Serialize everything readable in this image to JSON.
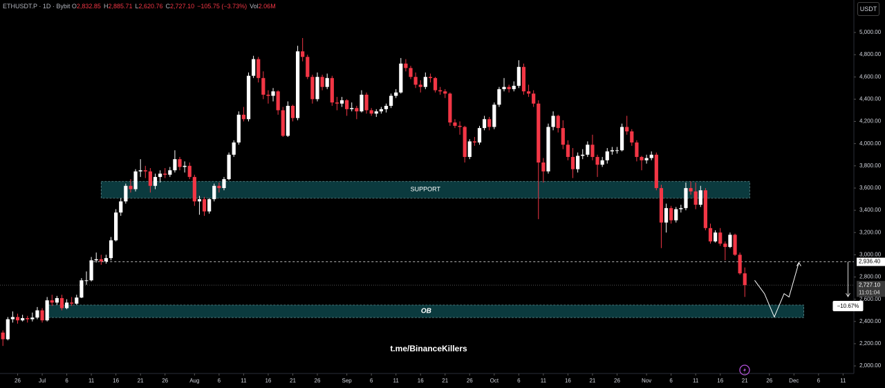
{
  "chart_data": {
    "type": "candlestick",
    "symbol": "ETHUSDT.P · 1D · Bybit",
    "header_fields": [
      {
        "key": "O",
        "text": "2,832.85"
      },
      {
        "key": "H",
        "text": "2,885.71"
      },
      {
        "key": "L",
        "text": "2,620.76"
      },
      {
        "key": "C",
        "text": "2,727.10"
      },
      {
        "text": "−105.75 (−3.73%)"
      },
      {
        "key": "Vol",
        "text": "2.06M"
      }
    ],
    "currency": "USDT",
    "watermark": "t.me/BinanceKillers",
    "up_color": "#ffffff",
    "down_color": "#f23645",
    "xlim": [
      -0.59,
      173.2
    ],
    "ylim": [
      1932,
      5292
    ],
    "yticks": [
      {
        "value": 2000,
        "label": "2,000.00"
      },
      {
        "value": 2200,
        "label": "2,200.00"
      },
      {
        "value": 2400,
        "label": "2,400.00"
      },
      {
        "value": 2600,
        "label": "2,600.00"
      },
      {
        "value": 2800,
        "label": "2,800.00"
      },
      {
        "value": 3000,
        "label": "3,000.00"
      },
      {
        "value": 3200,
        "label": "3,200.00"
      },
      {
        "value": 3400,
        "label": "3,400.00"
      },
      {
        "value": 3600,
        "label": "3,600.00"
      },
      {
        "value": 3800,
        "label": "3,800.00"
      },
      {
        "value": 4000,
        "label": "4,000.00"
      },
      {
        "value": 4200,
        "label": "4,200.00"
      },
      {
        "value": 4400,
        "label": "4,400.00"
      },
      {
        "value": 4600,
        "label": "4,600.00"
      },
      {
        "value": 4800,
        "label": "4,800.00"
      },
      {
        "value": 5000,
        "label": "5,000.00"
      }
    ],
    "xticks": [
      {
        "value": 3,
        "label": "26"
      },
      {
        "value": 8,
        "label": "Jul"
      },
      {
        "value": 13,
        "label": "6"
      },
      {
        "value": 18,
        "label": "11"
      },
      {
        "value": 23,
        "label": "16"
      },
      {
        "value": 28,
        "label": "21"
      },
      {
        "value": 33,
        "label": "26"
      },
      {
        "value": 39,
        "label": "Aug"
      },
      {
        "value": 44,
        "label": "6"
      },
      {
        "value": 49,
        "label": "11"
      },
      {
        "value": 54,
        "label": "16"
      },
      {
        "value": 59,
        "label": "21"
      },
      {
        "value": 64,
        "label": "26"
      },
      {
        "value": 70,
        "label": "Sep"
      },
      {
        "value": 75,
        "label": "6"
      },
      {
        "value": 80,
        "label": "11"
      },
      {
        "value": 85,
        "label": "16"
      },
      {
        "value": 90,
        "label": "21"
      },
      {
        "value": 95,
        "label": "26"
      },
      {
        "value": 100,
        "label": "Oct"
      },
      {
        "value": 105,
        "label": "6"
      },
      {
        "value": 110,
        "label": "11"
      },
      {
        "value": 115,
        "label": "16"
      },
      {
        "value": 120,
        "label": "21"
      },
      {
        "value": 125,
        "label": "26"
      },
      {
        "value": 131,
        "label": "Nov"
      },
      {
        "value": 136,
        "label": "6"
      },
      {
        "value": 141,
        "label": "11"
      },
      {
        "value": 146,
        "label": "16"
      },
      {
        "value": 151,
        "label": "21"
      },
      {
        "value": 156,
        "label": "26"
      },
      {
        "value": 161,
        "label": "Dec"
      },
      {
        "value": 166,
        "label": "6"
      },
      {
        "value": 171,
        "label": "11"
      }
    ],
    "candles": [
      [
        2300,
        2320,
        2180,
        2240
      ],
      [
        2240,
        2440,
        2230,
        2420
      ],
      [
        2420,
        2490,
        2390,
        2440
      ],
      [
        2440,
        2470,
        2380,
        2410
      ],
      [
        2410,
        2460,
        2400,
        2430
      ],
      [
        2430,
        2450,
        2390,
        2420
      ],
      [
        2420,
        2480,
        2400,
        2435
      ],
      [
        2435,
        2530,
        2420,
        2500
      ],
      [
        2500,
        2520,
        2390,
        2410
      ],
      [
        2410,
        2620,
        2400,
        2590
      ],
      [
        2590,
        2640,
        2540,
        2570
      ],
      [
        2570,
        2630,
        2550,
        2610
      ],
      [
        2610,
        2640,
        2500,
        2520
      ],
      [
        2520,
        2600,
        2510,
        2570
      ],
      [
        2570,
        2620,
        2540,
        2560
      ],
      [
        2560,
        2640,
        2550,
        2615
      ],
      [
        2615,
        2790,
        2610,
        2770
      ],
      [
        2770,
        2850,
        2730,
        2770
      ],
      [
        2770,
        2980,
        2760,
        2950
      ],
      [
        2950,
        3020,
        2930,
        2960
      ],
      [
        2960,
        3000,
        2910,
        2940
      ],
      [
        2940,
        3000,
        2920,
        2970
      ],
      [
        2970,
        3160,
        2950,
        3130
      ],
      [
        3130,
        3410,
        3120,
        3380
      ],
      [
        3380,
        3510,
        3350,
        3480
      ],
      [
        3480,
        3640,
        3460,
        3620
      ],
      [
        3620,
        3680,
        3560,
        3590
      ],
      [
        3590,
        3770,
        3570,
        3750
      ],
      [
        3750,
        3860,
        3700,
        3760
      ],
      [
        3760,
        3800,
        3690,
        3750
      ],
      [
        3750,
        3780,
        3560,
        3620
      ],
      [
        3620,
        3730,
        3590,
        3700
      ],
      [
        3700,
        3760,
        3650,
        3730
      ],
      [
        3730,
        3780,
        3690,
        3720
      ],
      [
        3720,
        3790,
        3700,
        3760
      ],
      [
        3760,
        3940,
        3740,
        3860
      ],
      [
        3860,
        3880,
        3760,
        3790
      ],
      [
        3790,
        3840,
        3740,
        3800
      ],
      [
        3800,
        3830,
        3680,
        3700
      ],
      [
        3700,
        3720,
        3440,
        3480
      ],
      [
        3480,
        3530,
        3360,
        3500
      ],
      [
        3500,
        3520,
        3350,
        3390
      ],
      [
        3390,
        3510,
        3370,
        3500
      ],
      [
        3500,
        3640,
        3480,
        3620
      ],
      [
        3620,
        3650,
        3560,
        3600
      ],
      [
        3600,
        3700,
        3580,
        3680
      ],
      [
        3680,
        3920,
        3670,
        3900
      ],
      [
        3900,
        4030,
        3880,
        4010
      ],
      [
        4010,
        4290,
        3990,
        4260
      ],
      [
        4260,
        4330,
        4200,
        4220
      ],
      [
        4220,
        4640,
        4200,
        4610
      ],
      [
        4610,
        4790,
        4590,
        4760
      ],
      [
        4760,
        4780,
        4550,
        4590
      ],
      [
        4590,
        4650,
        4400,
        4440
      ],
      [
        4440,
        4480,
        4360,
        4430
      ],
      [
        4430,
        4500,
        4380,
        4470
      ],
      [
        4470,
        4480,
        4260,
        4300
      ],
      [
        4300,
        4330,
        4060,
        4070
      ],
      [
        4070,
        4380,
        4060,
        4340
      ],
      [
        4340,
        4350,
        4200,
        4230
      ],
      [
        4230,
        4880,
        4210,
        4830
      ],
      [
        4830,
        4950,
        4740,
        4780
      ],
      [
        4780,
        4800,
        4580,
        4600
      ],
      [
        4600,
        4620,
        4360,
        4400
      ],
      [
        4400,
        4640,
        4380,
        4600
      ],
      [
        4600,
        4620,
        4480,
        4510
      ],
      [
        4510,
        4630,
        4490,
        4590
      ],
      [
        4590,
        4610,
        4340,
        4370
      ],
      [
        4370,
        4420,
        4300,
        4360
      ],
      [
        4360,
        4420,
        4330,
        4390
      ],
      [
        4390,
        4400,
        4250,
        4310
      ],
      [
        4310,
        4370,
        4290,
        4320
      ],
      [
        4320,
        4340,
        4220,
        4290
      ],
      [
        4290,
        4480,
        4280,
        4440
      ],
      [
        4440,
        4460,
        4270,
        4300
      ],
      [
        4300,
        4320,
        4250,
        4270
      ],
      [
        4270,
        4310,
        4240,
        4290
      ],
      [
        4290,
        4330,
        4270,
        4310
      ],
      [
        4310,
        4360,
        4280,
        4340
      ],
      [
        4340,
        4450,
        4320,
        4430
      ],
      [
        4430,
        4490,
        4410,
        4460
      ],
      [
        4460,
        4770,
        4450,
        4720
      ],
      [
        4720,
        4760,
        4650,
        4680
      ],
      [
        4680,
        4700,
        4580,
        4600
      ],
      [
        4600,
        4640,
        4500,
        4530
      ],
      [
        4530,
        4570,
        4460,
        4510
      ],
      [
        4510,
        4640,
        4490,
        4600
      ],
      [
        4600,
        4630,
        4550,
        4590
      ],
      [
        4590,
        4600,
        4460,
        4480
      ],
      [
        4480,
        4510,
        4440,
        4470
      ],
      [
        4470,
        4490,
        4410,
        4450
      ],
      [
        4450,
        4460,
        4160,
        4190
      ],
      [
        4190,
        4220,
        4140,
        4160
      ],
      [
        4160,
        4200,
        4080,
        4150
      ],
      [
        4150,
        4160,
        3830,
        3880
      ],
      [
        3880,
        4040,
        3860,
        4020
      ],
      [
        4020,
        4060,
        3980,
        4010
      ],
      [
        4010,
        4160,
        3990,
        4140
      ],
      [
        4140,
        4250,
        4120,
        4220
      ],
      [
        4220,
        4240,
        4120,
        4150
      ],
      [
        4150,
        4370,
        4130,
        4350
      ],
      [
        4350,
        4510,
        4330,
        4490
      ],
      [
        4490,
        4590,
        4470,
        4510
      ],
      [
        4510,
        4530,
        4460,
        4490
      ],
      [
        4490,
        4560,
        4470,
        4520
      ],
      [
        4520,
        4750,
        4500,
        4690
      ],
      [
        4690,
        4720,
        4440,
        4470
      ],
      [
        4470,
        4530,
        4420,
        4450
      ],
      [
        4450,
        4480,
        4330,
        4360
      ],
      [
        4360,
        4390,
        3320,
        3830
      ],
      [
        3830,
        3870,
        3650,
        3750
      ],
      [
        3750,
        4180,
        3730,
        4150
      ],
      [
        4150,
        4290,
        4120,
        4250
      ],
      [
        4250,
        4260,
        4100,
        4140
      ],
      [
        4140,
        4210,
        3950,
        3990
      ],
      [
        3990,
        4030,
        3850,
        3880
      ],
      [
        3880,
        3960,
        3690,
        3770
      ],
      [
        3770,
        3920,
        3740,
        3890
      ],
      [
        3890,
        3950,
        3860,
        3900
      ],
      [
        3900,
        4020,
        3880,
        3990
      ],
      [
        3990,
        4080,
        3850,
        3880
      ],
      [
        3880,
        3900,
        3700,
        3810
      ],
      [
        3810,
        3880,
        3790,
        3850
      ],
      [
        3850,
        3960,
        3820,
        3930
      ],
      [
        3930,
        3970,
        3900,
        3940
      ],
      [
        3940,
        3970,
        3910,
        3940
      ],
      [
        3940,
        4180,
        3930,
        4150
      ],
      [
        4150,
        4250,
        4080,
        4110
      ],
      [
        4110,
        4130,
        3980,
        4010
      ],
      [
        4010,
        4030,
        3840,
        3880
      ],
      [
        3880,
        3890,
        3760,
        3850
      ],
      [
        3850,
        3900,
        3820,
        3870
      ],
      [
        3870,
        3930,
        3850,
        3900
      ],
      [
        3900,
        3920,
        3580,
        3600
      ],
      [
        3600,
        3630,
        3060,
        3290
      ],
      [
        3290,
        3460,
        3200,
        3420
      ],
      [
        3420,
        3440,
        3280,
        3310
      ],
      [
        3310,
        3430,
        3290,
        3410
      ],
      [
        3410,
        3450,
        3380,
        3420
      ],
      [
        3420,
        3650,
        3400,
        3600
      ],
      [
        3600,
        3660,
        3540,
        3570
      ],
      [
        3570,
        3650,
        3410,
        3450
      ],
      [
        3450,
        3620,
        3430,
        3580
      ],
      [
        3580,
        3600,
        3220,
        3240
      ],
      [
        3240,
        3280,
        3100,
        3120
      ],
      [
        3120,
        3220,
        3110,
        3200
      ],
      [
        3200,
        3240,
        3080,
        3100
      ],
      [
        3100,
        3120,
        2950,
        3070
      ],
      [
        3070,
        3200,
        3060,
        3180
      ],
      [
        3180,
        3190,
        2990,
        3000
      ],
      [
        3000,
        3020,
        2820,
        2832.85
      ],
      [
        2832.85,
        2885.71,
        2620.76,
        2727.1
      ]
    ],
    "zones": [
      {
        "label": "SUPPORT",
        "xlim": [
          20,
          152
        ],
        "ylim": [
          3510,
          3660
        ]
      },
      {
        "label": "OB",
        "xlim": [
          9.3,
          163
        ],
        "ylim": [
          2435,
          2548
        ]
      }
    ],
    "level": {
      "value": 2936.4,
      "label": "2,936.40",
      "start": 17.6
    },
    "last_price": {
      "value": 2727.1,
      "label": "2,727.10",
      "countdown": "11:01:04"
    },
    "projection": {
      "x": [
        153,
        155,
        157,
        159,
        160,
        162
      ],
      "y": [
        2770,
        2650,
        2440,
        2650,
        2620,
        2930
      ]
    },
    "measure": {
      "x": 172,
      "from": 2936.4,
      "to": 2623,
      "label": "−10.67%"
    }
  }
}
